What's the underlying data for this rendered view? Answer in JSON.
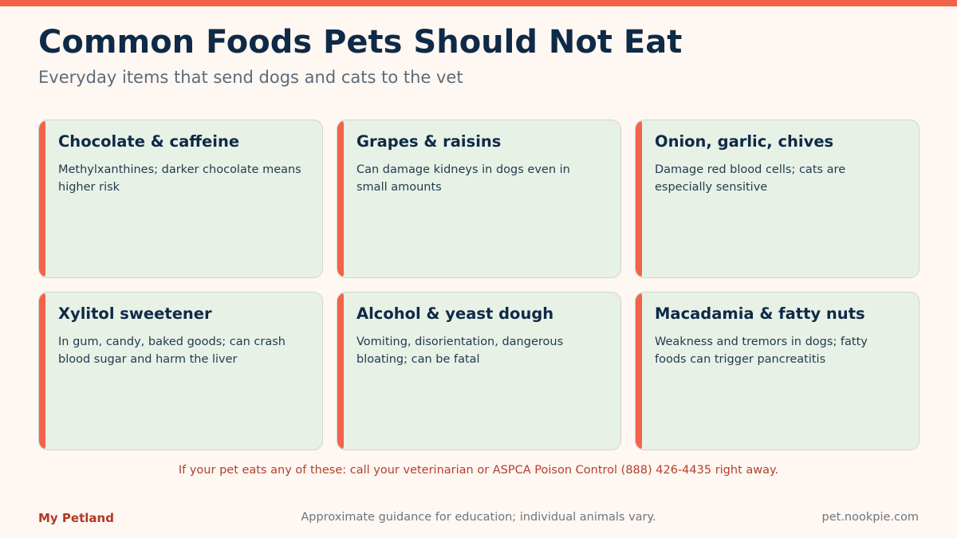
{
  "header": {
    "title": "Common Foods Pets Should Not Eat",
    "subtitle": "Everyday items that send dogs and cats to the vet"
  },
  "cards": [
    {
      "title": "Chocolate & caffeine",
      "body": "Methylxanthines; darker chocolate means higher risk"
    },
    {
      "title": "Grapes & raisins",
      "body": "Can damage kidneys in dogs even in small amounts"
    },
    {
      "title": "Onion, garlic, chives",
      "body": "Damage red blood cells; cats are especially sensitive"
    },
    {
      "title": "Xylitol sweetener",
      "body": "In gum, candy, baked goods; can crash blood sugar and harm the liver"
    },
    {
      "title": "Alcohol & yeast dough",
      "body": "Vomiting, disorientation, dangerous bloating; can be fatal"
    },
    {
      "title": "Macadamia & fatty nuts",
      "body": "Weakness and tremors in dogs; fatty foods can trigger pancreatitis"
    }
  ],
  "warning": "If your pet eats any of these: call your veterinarian or ASPCA Poison Control (888) 426-4435 right away.",
  "footer": {
    "brand": "My Petland",
    "note": "Approximate guidance for education; individual animals vary.",
    "site": "pet.nookpie.com"
  },
  "colors": {
    "accent": "#f4624a",
    "background": "#fff7f2",
    "card_background": "#e8f1e6",
    "title": "#0e2a47",
    "warning": "#b3402a"
  }
}
